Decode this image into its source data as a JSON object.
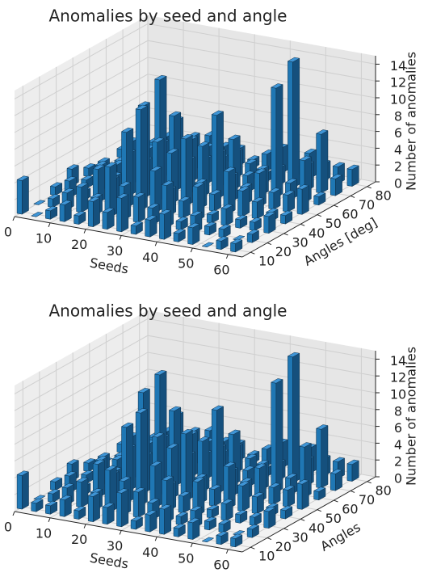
{
  "chart_data": [
    {
      "type": "bar3d",
      "title": "Anomalies by seed and angle",
      "xlabel": "Seeds",
      "ylabel": "Angles [deg]",
      "zlabel": "Number of anomalies",
      "color": "#1f77b4",
      "x": [
        0,
        4,
        8,
        12,
        16,
        20,
        24,
        28,
        32,
        36,
        40,
        44,
        48,
        52,
        56,
        60
      ],
      "y": [
        10,
        20,
        30,
        40,
        50,
        60,
        70,
        80
      ],
      "values": [
        [
          4,
          0,
          1,
          2,
          1,
          3,
          2,
          4,
          1,
          2,
          3,
          1,
          2,
          0,
          1,
          1
        ],
        [
          0,
          1,
          2,
          3,
          2,
          6,
          4,
          3,
          2,
          5,
          1,
          2,
          1,
          1,
          0,
          1
        ],
        [
          1,
          2,
          1,
          4,
          3,
          9,
          12,
          5,
          3,
          2,
          4,
          1,
          2,
          1,
          1,
          2
        ],
        [
          2,
          1,
          3,
          2,
          5,
          11,
          7,
          6,
          8,
          3,
          2,
          5,
          3,
          2,
          1,
          1
        ],
        [
          1,
          2,
          2,
          5,
          3,
          13,
          9,
          4,
          6,
          10,
          3,
          2,
          4,
          2,
          2,
          3
        ],
        [
          0,
          1,
          2,
          3,
          4,
          7,
          5,
          3,
          4,
          6,
          2,
          3,
          13,
          2,
          5,
          1
        ],
        [
          1,
          0,
          1,
          2,
          2,
          4,
          3,
          2,
          3,
          2,
          1,
          2,
          15,
          3,
          7,
          2
        ],
        [
          1,
          1,
          2,
          1,
          1,
          3,
          2,
          2,
          1,
          2,
          3,
          1,
          3,
          2,
          2,
          2
        ]
      ],
      "xlim": [
        0,
        64
      ],
      "ylim": [
        5,
        85
      ],
      "zlim": [
        0,
        15
      ],
      "xticks": [
        0,
        10,
        20,
        30,
        40,
        50,
        60
      ],
      "yticks": [
        10,
        20,
        30,
        40,
        50,
        60,
        70,
        80
      ],
      "zticks": [
        0,
        2,
        4,
        6,
        8,
        10,
        12,
        14
      ],
      "grid": true
    },
    {
      "type": "bar3d",
      "title": "Anomalies by seed and angle",
      "xlabel": "Seeds",
      "ylabel": "Angles",
      "zlabel": "Number of anomalies",
      "color": "#1f77b4",
      "x": [
        0,
        4,
        8,
        12,
        16,
        20,
        24,
        28,
        32,
        36,
        40,
        44,
        48,
        52,
        56,
        60
      ],
      "y": [
        10,
        20,
        30,
        40,
        50,
        60,
        70,
        80
      ],
      "values": [
        [
          4,
          1,
          1,
          2,
          1,
          3,
          2,
          4,
          1,
          2,
          3,
          1,
          2,
          0,
          1,
          1
        ],
        [
          0,
          1,
          2,
          3,
          2,
          5,
          4,
          3,
          2,
          5,
          1,
          2,
          1,
          1,
          0,
          1
        ],
        [
          1,
          2,
          1,
          4,
          3,
          9,
          11,
          5,
          3,
          2,
          4,
          1,
          2,
          1,
          1,
          2
        ],
        [
          2,
          1,
          3,
          2,
          5,
          12,
          7,
          6,
          8,
          3,
          2,
          5,
          3,
          2,
          1,
          1
        ],
        [
          1,
          2,
          2,
          5,
          3,
          13,
          9,
          4,
          6,
          10,
          3,
          2,
          4,
          2,
          2,
          3
        ],
        [
          0,
          1,
          2,
          3,
          4,
          7,
          5,
          3,
          4,
          6,
          2,
          3,
          13,
          2,
          6,
          1
        ],
        [
          1,
          0,
          1,
          2,
          2,
          4,
          3,
          2,
          3,
          2,
          1,
          2,
          15,
          3,
          7,
          2
        ],
        [
          1,
          1,
          2,
          1,
          1,
          3,
          2,
          2,
          1,
          2,
          3,
          1,
          3,
          2,
          2,
          2
        ]
      ],
      "xlim": [
        0,
        64
      ],
      "ylim": [
        5,
        85
      ],
      "zlim": [
        0,
        15
      ],
      "xticks": [
        0,
        10,
        20,
        30,
        40,
        50,
        60
      ],
      "yticks": [
        10,
        20,
        30,
        40,
        50,
        60,
        70,
        80
      ],
      "zticks": [
        0,
        2,
        4,
        6,
        8,
        10,
        12,
        14
      ],
      "grid": true
    }
  ]
}
